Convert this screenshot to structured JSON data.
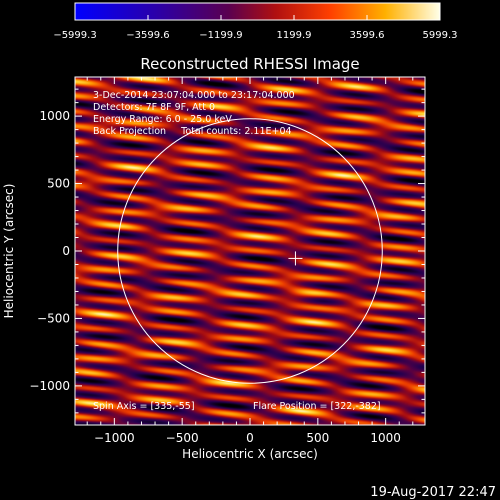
{
  "chart_data": {
    "type": "heatmap",
    "title": "Reconstructed RHESSI Image",
    "xlabel": "Heliocentric X (arcsec)",
    "ylabel": "Heliocentric Y (arcsec)",
    "xlim": [
      -1290,
      1290
    ],
    "ylim": [
      -1290,
      1290
    ],
    "x_ticks": [
      -1000,
      -500,
      0,
      500,
      1000
    ],
    "x_tick_labels": [
      "−1000",
      "−500",
      "0",
      "500",
      "1000"
    ],
    "y_ticks": [
      -1000,
      -500,
      0,
      500,
      1000
    ],
    "y_tick_labels": [
      "−1000",
      "−500",
      "0",
      "500",
      "1000"
    ],
    "colorbar": {
      "ticks": [
        -5999.3,
        -3599.6,
        -1199.9,
        1199.9,
        3599.6,
        5999.3
      ],
      "tick_labels": [
        "−5999.3",
        "−3599.6",
        "−1199.9",
        "1199.9",
        "3599.6",
        "5999.3"
      ],
      "range": [
        -5999.3,
        5999.3
      ]
    },
    "annotations": [
      "3-Dec-2014 23:07:04.000 to 23:17:04.000",
      "Detectors: 7F 8F 9F, Att 0",
      "Energy Range: 6.0 - 25.0 keV",
      "Back Projection     Total counts: 2.11E+04"
    ],
    "spin_axis_label": "Spin Axis = [335,-55]",
    "flare_position_label": "Flare Position = [322,-382]",
    "marker": {
      "x": 335,
      "y": -55
    },
    "limb_radius": 975
  },
  "footer_timestamp": "19-Aug-2017 22:47",
  "colors": {
    "background": "#000000",
    "foreground": "#ffffff"
  }
}
